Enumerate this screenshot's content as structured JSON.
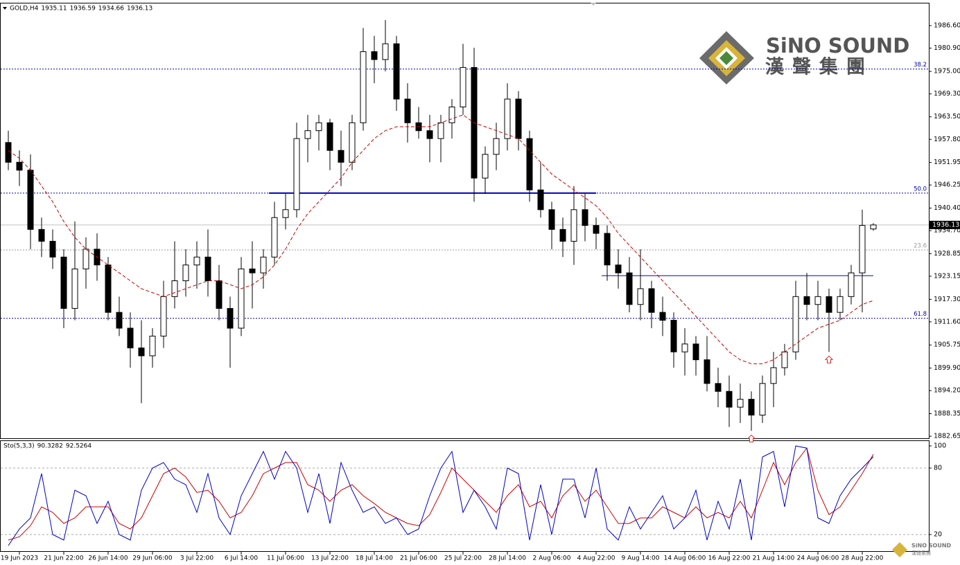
{
  "logo": {
    "latin": "SiNO SOUND",
    "chinese": "漢聲集團"
  },
  "chart_data": [
    {
      "type": "candlestick",
      "title": "GOLD,H4",
      "open": [
        1957,
        1952,
        1950,
        1935,
        1932,
        1928,
        1915,
        1925,
        1930,
        1926,
        1914,
        1910,
        1905,
        1903,
        1908,
        1918,
        1922,
        1926,
        1928,
        1922,
        1915,
        1910,
        1925,
        1924,
        1928,
        1938,
        1940,
        1958,
        1960,
        1962,
        1955,
        1952,
        1962,
        1980,
        1978,
        1982,
        1968,
        1962,
        1960,
        1958,
        1962,
        1966,
        1976,
        1948,
        1954,
        1958,
        1968,
        1958,
        1945,
        1940,
        1935,
        1932,
        1940,
        1936,
        1934,
        1926,
        1924,
        1916,
        1920,
        1914,
        1912,
        1904,
        1906,
        1902,
        1896,
        1894,
        1890,
        1892,
        1888,
        1896,
        1900,
        1904,
        1918,
        1916,
        1918,
        1914,
        1918,
        1924,
        1935.11
      ],
      "high": [
        1960,
        1955,
        1954,
        1938,
        1935,
        1930,
        1937,
        1933,
        1934,
        1928,
        1918,
        1914,
        1912,
        1910,
        1922,
        1932,
        1930,
        1932,
        1935,
        1926,
        1918,
        1928,
        1932,
        1930,
        1942,
        1944,
        1962,
        1964,
        1964,
        1963,
        1960,
        1964,
        1986,
        1984,
        1988,
        1984,
        1972,
        1966,
        1964,
        1964,
        1968,
        1982,
        1981,
        1956,
        1962,
        1972,
        1970,
        1960,
        1952,
        1942,
        1938,
        1946,
        1944,
        1938,
        1936,
        1930,
        1928,
        1930,
        1922,
        1918,
        1914,
        1910,
        1908,
        1908,
        1900,
        1898,
        1896,
        1894,
        1898,
        1904,
        1906,
        1922,
        1924,
        1922,
        1920,
        1920,
        1926,
        1940,
        1936.59
      ],
      "low": [
        1950,
        1946,
        1930,
        1928,
        1925,
        1910,
        1912,
        1920,
        1922,
        1912,
        1908,
        1900,
        1891,
        1900,
        1905,
        1915,
        1918,
        1920,
        1918,
        1912,
        1900,
        1908,
        1915,
        1920,
        1926,
        1935,
        1938,
        1952,
        1955,
        1950,
        1946,
        1950,
        1960,
        1972,
        1975,
        1965,
        1957,
        1958,
        1952,
        1952,
        1958,
        1964,
        1942,
        1944,
        1950,
        1955,
        1955,
        1942,
        1938,
        1930,
        1928,
        1926,
        1932,
        1930,
        1922,
        1920,
        1914,
        1912,
        1910,
        1908,
        1900,
        1898,
        1898,
        1894,
        1890,
        1885,
        1886,
        1884,
        1886,
        1890,
        1898,
        1902,
        1912,
        1912,
        1904,
        1912,
        1916,
        1914,
        1934.66
      ],
      "close": [
        1952,
        1950,
        1935,
        1932,
        1928,
        1915,
        1925,
        1930,
        1926,
        1914,
        1910,
        1905,
        1903,
        1908,
        1918,
        1922,
        1926,
        1928,
        1922,
        1915,
        1910,
        1925,
        1924,
        1928,
        1938,
        1940,
        1958,
        1960,
        1962,
        1955,
        1952,
        1962,
        1980,
        1978,
        1982,
        1968,
        1962,
        1960,
        1958,
        1962,
        1966,
        1976,
        1948,
        1954,
        1958,
        1968,
        1958,
        1945,
        1940,
        1935,
        1932,
        1940,
        1936,
        1934,
        1926,
        1924,
        1916,
        1920,
        1914,
        1912,
        1904,
        1906,
        1902,
        1896,
        1894,
        1890,
        1892,
        1888,
        1896,
        1900,
        1904,
        1918,
        1916,
        1918,
        1914,
        1918,
        1924,
        1936,
        1936.13
      ],
      "ylim": [
        1882.3,
        1992.2
      ],
      "yticks": [
        {
          "value": 1986.6,
          "label": "1986.60"
        },
        {
          "value": 1980.9,
          "label": "1980.90"
        },
        {
          "value": 1975.0,
          "label": "1975.00"
        },
        {
          "value": 1969.3,
          "label": "1969.30"
        },
        {
          "value": 1963.5,
          "label": "1963.50"
        },
        {
          "value": 1957.8,
          "label": "1957.80"
        },
        {
          "value": 1951.95,
          "label": "1951.95"
        },
        {
          "value": 1946.25,
          "label": "1946.25"
        },
        {
          "value": 1940.4,
          "label": "1940.40"
        },
        {
          "value": 1934.7,
          "label": "1934.70"
        },
        {
          "value": 1928.85,
          "label": "1928.85"
        },
        {
          "value": 1923.15,
          "label": "1923.15"
        },
        {
          "value": 1917.3,
          "label": "1917.30"
        },
        {
          "value": 1911.6,
          "label": "1911.60"
        },
        {
          "value": 1905.75,
          "label": "1905.75"
        },
        {
          "value": 1899.9,
          "label": "1899.90"
        },
        {
          "value": 1894.2,
          "label": "1894.20"
        },
        {
          "value": 1888.35,
          "label": "1888.35"
        },
        {
          "value": 1882.65,
          "label": "1882.65"
        }
      ],
      "xticks": [
        {
          "value": 1,
          "label": "19 Jun 2023"
        },
        {
          "value": 5,
          "label": "21 Jun 22:00"
        },
        {
          "value": 9,
          "label": "26 Jun 14:00"
        },
        {
          "value": 13,
          "label": "29 Jun 06:00"
        },
        {
          "value": 17,
          "label": "3 Jul 22:00"
        },
        {
          "value": 21,
          "label": "6 Jul 14:00"
        },
        {
          "value": 25,
          "label": "11 Jul 06:00"
        },
        {
          "value": 29,
          "label": "13 Jul 22:00"
        },
        {
          "value": 33,
          "label": "18 Jul 14:00"
        },
        {
          "value": 37,
          "label": "21 Jul 06:00"
        },
        {
          "value": 41,
          "label": "25 Jul 22:00"
        },
        {
          "value": 45,
          "label": "28 Jul 14:00"
        },
        {
          "value": 49,
          "label": "2 Aug 06:00"
        },
        {
          "value": 53,
          "label": "4 Aug 22:00"
        },
        {
          "value": 57,
          "label": "9 Aug 14:00"
        },
        {
          "value": 61,
          "label": "14 Aug 06:00"
        },
        {
          "value": 65,
          "label": "16 Aug 22:00"
        },
        {
          "value": 69,
          "label": "21 Aug 14:00"
        },
        {
          "value": 73,
          "label": "24 Aug 06:00"
        },
        {
          "value": 77,
          "label": "28 Aug 22:00"
        }
      ],
      "ma": {
        "color": "#cc0000",
        "values": [
          1955,
          1953,
          1950,
          1946,
          1942,
          1937,
          1933,
          1930,
          1928,
          1926,
          1924,
          1922,
          1920,
          1919,
          1918,
          1919,
          1920,
          1921,
          1922,
          1922,
          1921,
          1920,
          1921,
          1923,
          1926,
          1930,
          1935,
          1939,
          1942,
          1945,
          1948,
          1952,
          1955,
          1958,
          1960,
          1961,
          1961,
          1961,
          1961,
          1962,
          1963,
          1964,
          1962,
          1961,
          1960,
          1959,
          1958,
          1955,
          1952,
          1949,
          1947,
          1945,
          1943,
          1941,
          1938,
          1934,
          1931,
          1928,
          1925,
          1922,
          1919,
          1916,
          1913,
          1910,
          1907,
          1904,
          1902,
          1901,
          1901,
          1902,
          1904,
          1906,
          1908,
          1910,
          1911,
          1912,
          1914,
          1916,
          1917
        ]
      },
      "levels": [
        {
          "label": "38.2",
          "value": 1975.6,
          "color": "#0000aa"
        },
        {
          "label": "50.0",
          "value": 1944.2,
          "color": "#0000aa"
        },
        {
          "label": "23.6",
          "value": 1929.8,
          "color": "#999999"
        },
        {
          "label": "61.8",
          "value": 1912.5,
          "color": "#0000aa"
        }
      ],
      "trendlines": [
        {
          "value": 1944.2,
          "start": 24,
          "end": 53,
          "color": "#0000bb"
        },
        {
          "value": 1923.3,
          "start": 54,
          "end": 78,
          "color": "#0000bb"
        }
      ],
      "arrows": [
        67,
        74
      ],
      "colors": {
        "bull": "#ffffff",
        "bear": "#000000",
        "outline": "#000000"
      }
    },
    {
      "type": "line",
      "title": "Sto(5,3,3)",
      "series": [
        {
          "color": "#0000cc",
          "values": [
            10,
            25,
            35,
            75,
            20,
            15,
            60,
            55,
            30,
            50,
            20,
            15,
            60,
            80,
            85,
            70,
            65,
            40,
            75,
            35,
            20,
            55,
            75,
            95,
            70,
            95,
            80,
            40,
            75,
            30,
            85,
            60,
            40,
            45,
            30,
            35,
            20,
            25,
            55,
            80,
            95,
            40,
            60,
            45,
            25,
            80,
            75,
            15,
            65,
            20,
            70,
            70,
            35,
            80,
            25,
            15,
            45,
            25,
            40,
            55,
            25,
            35,
            60,
            15,
            50,
            25,
            70,
            15,
            90,
            95,
            45,
            100,
            98,
            35,
            30,
            55,
            70,
            80,
            90.3282
          ]
        },
        {
          "color": "#cc0000",
          "values": [
            15,
            18,
            28,
            45,
            40,
            30,
            35,
            45,
            45,
            45,
            30,
            25,
            35,
            55,
            75,
            80,
            72,
            58,
            60,
            50,
            35,
            40,
            55,
            75,
            80,
            85,
            85,
            65,
            60,
            50,
            60,
            65,
            55,
            48,
            40,
            35,
            30,
            28,
            38,
            58,
            80,
            70,
            60,
            50,
            40,
            55,
            65,
            45,
            50,
            35,
            55,
            65,
            50,
            60,
            45,
            30,
            30,
            35,
            35,
            45,
            40,
            35,
            45,
            35,
            40,
            35,
            50,
            35,
            60,
            85,
            65,
            85,
            98,
            60,
            38,
            45,
            60,
            75,
            92.5264
          ]
        }
      ],
      "ylim": [
        5,
        105
      ],
      "yticks": [
        100,
        80,
        20
      ],
      "levels": [
        80,
        20
      ]
    }
  ]
}
